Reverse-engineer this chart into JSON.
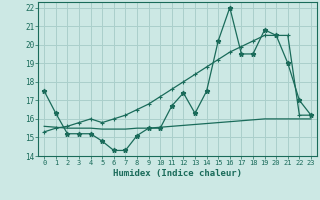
{
  "x": [
    0,
    1,
    2,
    3,
    4,
    5,
    6,
    7,
    8,
    9,
    10,
    11,
    12,
    13,
    14,
    15,
    16,
    17,
    18,
    19,
    20,
    21,
    22,
    23
  ],
  "series1": [
    17.5,
    16.3,
    15.2,
    15.2,
    15.2,
    14.8,
    14.3,
    14.3,
    15.1,
    15.5,
    15.5,
    16.7,
    17.4,
    16.3,
    17.5,
    20.2,
    22.0,
    19.5,
    19.5,
    20.8,
    20.5,
    19.0,
    17.0,
    16.2
  ],
  "series2": [
    15.6,
    15.55,
    15.5,
    15.5,
    15.5,
    15.45,
    15.45,
    15.45,
    15.5,
    15.5,
    15.55,
    15.6,
    15.65,
    15.7,
    15.75,
    15.8,
    15.85,
    15.9,
    15.95,
    16.0,
    16.0,
    16.0,
    16.0,
    16.0
  ],
  "series3": [
    15.3,
    15.5,
    15.6,
    15.8,
    16.0,
    15.8,
    16.0,
    16.2,
    16.5,
    16.8,
    17.2,
    17.6,
    18.0,
    18.4,
    18.8,
    19.2,
    19.6,
    19.9,
    20.2,
    20.5,
    20.5,
    20.5,
    16.2,
    16.2
  ],
  "line_color": "#1a6b5a",
  "bg_color": "#cce8e4",
  "grid_color": "#aacfcb",
  "xlabel": "Humidex (Indice chaleur)",
  "ylim": [
    14,
    22.3
  ],
  "xlim": [
    -0.5,
    23.5
  ],
  "yticks": [
    14,
    15,
    16,
    17,
    18,
    19,
    20,
    21,
    22
  ],
  "xticks": [
    0,
    1,
    2,
    3,
    4,
    5,
    6,
    7,
    8,
    9,
    10,
    11,
    12,
    13,
    14,
    15,
    16,
    17,
    18,
    19,
    20,
    21,
    22,
    23
  ]
}
